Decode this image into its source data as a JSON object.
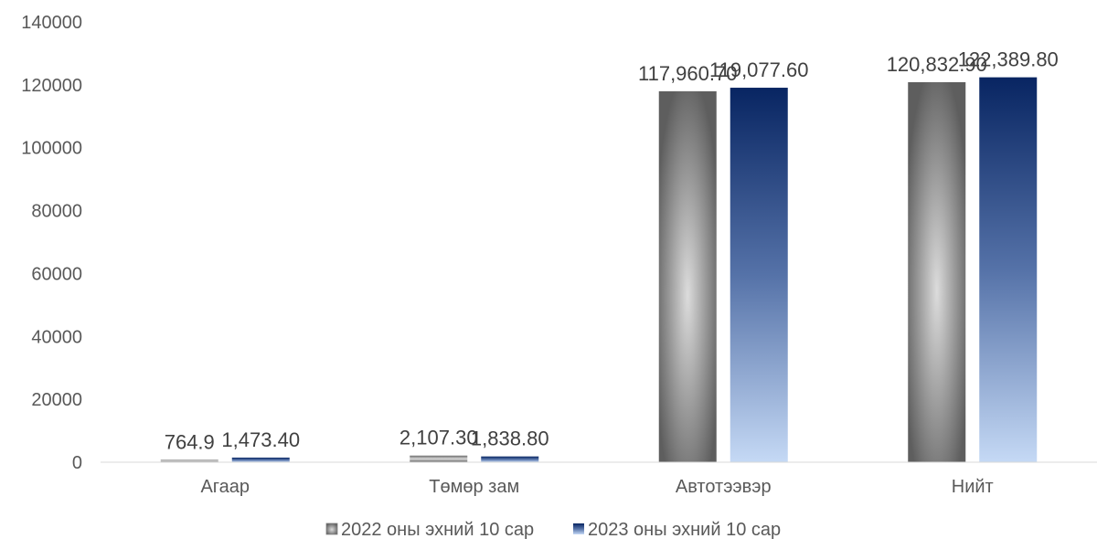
{
  "chart_data": {
    "type": "bar",
    "categories": [
      "Агаар",
      "Төмөр зам",
      "Автотээвэр",
      "Нийт"
    ],
    "series": [
      {
        "name": "2022 оны эхний 10 сар",
        "values": [
          764.9,
          2107.3,
          117960.7,
          120832.9
        ],
        "labels": [
          "764.9",
          "2,107.30",
          "117,960.70",
          "120,832.90"
        ],
        "color": "#666666"
      },
      {
        "name": "2023 оны эхний 10 сар",
        "values": [
          1473.4,
          1838.8,
          119077.6,
          122389.8
        ],
        "labels": [
          "1,473.40",
          "1,838.80",
          "119,077.60",
          "122,389.80"
        ],
        "color": "#0d2a66"
      }
    ],
    "ylim": [
      0,
      140000
    ],
    "yticks": [
      "0",
      "20000",
      "40000",
      "60000",
      "80000",
      "100000",
      "120000",
      "140000"
    ],
    "grid": false,
    "legend": "bottom",
    "title": "",
    "xlabel": "",
    "ylabel": ""
  }
}
